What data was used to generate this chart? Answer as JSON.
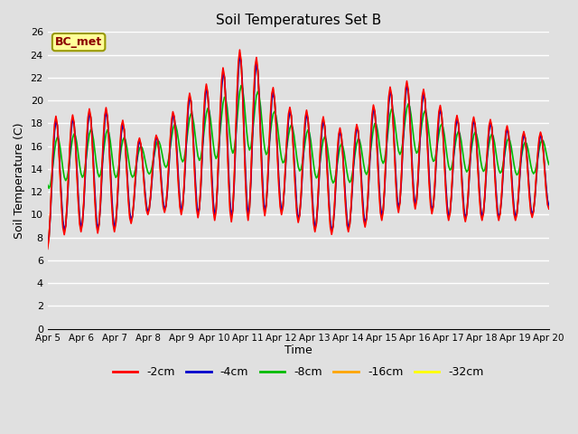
{
  "title": "Soil Temperatures Set B",
  "xlabel": "Time",
  "ylabel": "Soil Temperature (C)",
  "annotation": "BC_met",
  "annotation_facecolor": "#FFFF99",
  "annotation_edgecolor": "#999900",
  "annotation_textcolor": "#8B0000",
  "ylim": [
    0,
    26
  ],
  "yticks": [
    0,
    2,
    4,
    6,
    8,
    10,
    12,
    14,
    16,
    18,
    20,
    22,
    24,
    26
  ],
  "background_color": "#E0E0E0",
  "plot_bg_color": "#E0E0E0",
  "grid_color": "#FFFFFF",
  "series_colors": {
    "-2cm": "#FF0000",
    "-4cm": "#0000CC",
    "-8cm": "#00BB00",
    "-16cm": "#FFA500",
    "-32cm": "#FFFF00"
  },
  "xtick_labels": [
    "Apr 5",
    "Apr 6",
    "Apr 7",
    "Apr 8",
    "Apr 9",
    "Apr 10",
    "Apr 11",
    "Apr 12",
    "Apr 13",
    "Apr 14",
    "Apr 15",
    "Apr 16",
    "Apr 17",
    "Apr 18",
    "Apr 19",
    "Apr 20"
  ],
  "days": 15,
  "points_per_day": 24,
  "figsize": [
    6.4,
    4.8
  ],
  "dpi": 100
}
